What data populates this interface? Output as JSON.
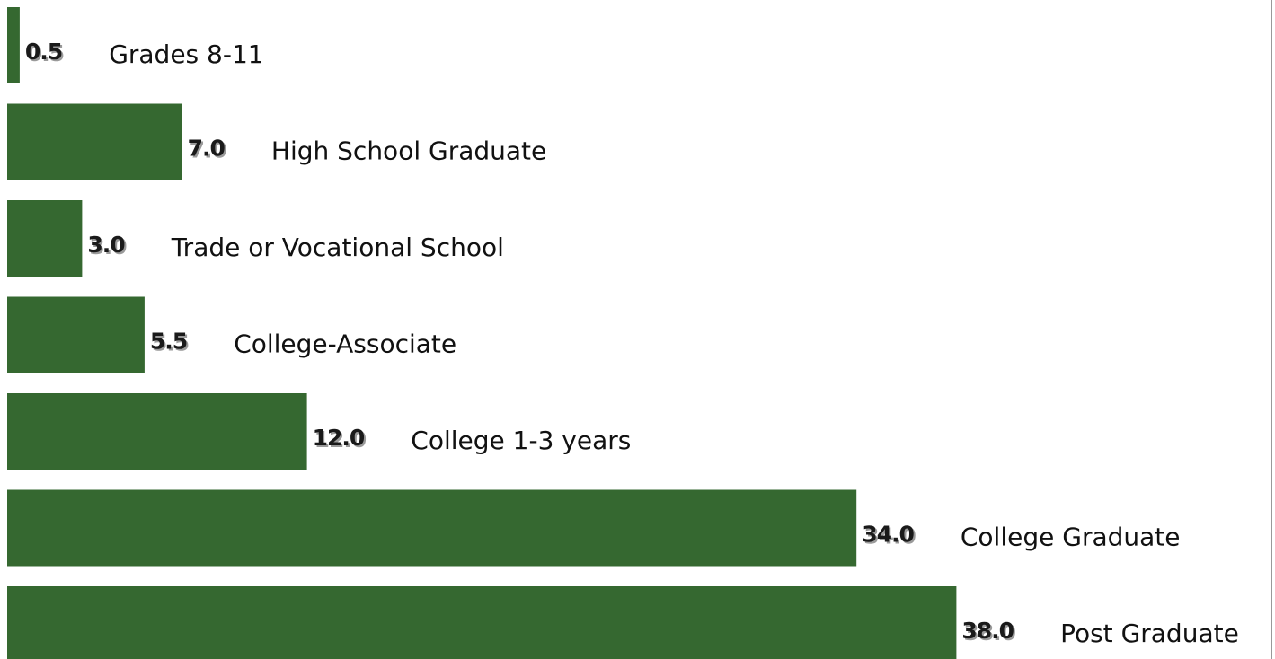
{
  "chart_data": {
    "type": "bar",
    "orientation": "horizontal",
    "categories": [
      "Grades 8-11",
      "High School Graduate",
      "Trade or Vocational School",
      "College-Associate",
      "College 1-3 years",
      "College Graduate",
      "Post Graduate"
    ],
    "values": [
      0.5,
      7.0,
      3.0,
      5.5,
      12.0,
      34.0,
      38.0
    ],
    "value_labels": [
      "0.5",
      "7.0",
      "3.0",
      "5.5",
      "12.0",
      "34.0",
      "38.0"
    ],
    "title": "",
    "xlabel": "",
    "ylabel": "",
    "xlim": [
      0,
      40
    ],
    "grid": false,
    "legend": "none",
    "bar_color": "#356830",
    "frame_color": "#999999"
  }
}
